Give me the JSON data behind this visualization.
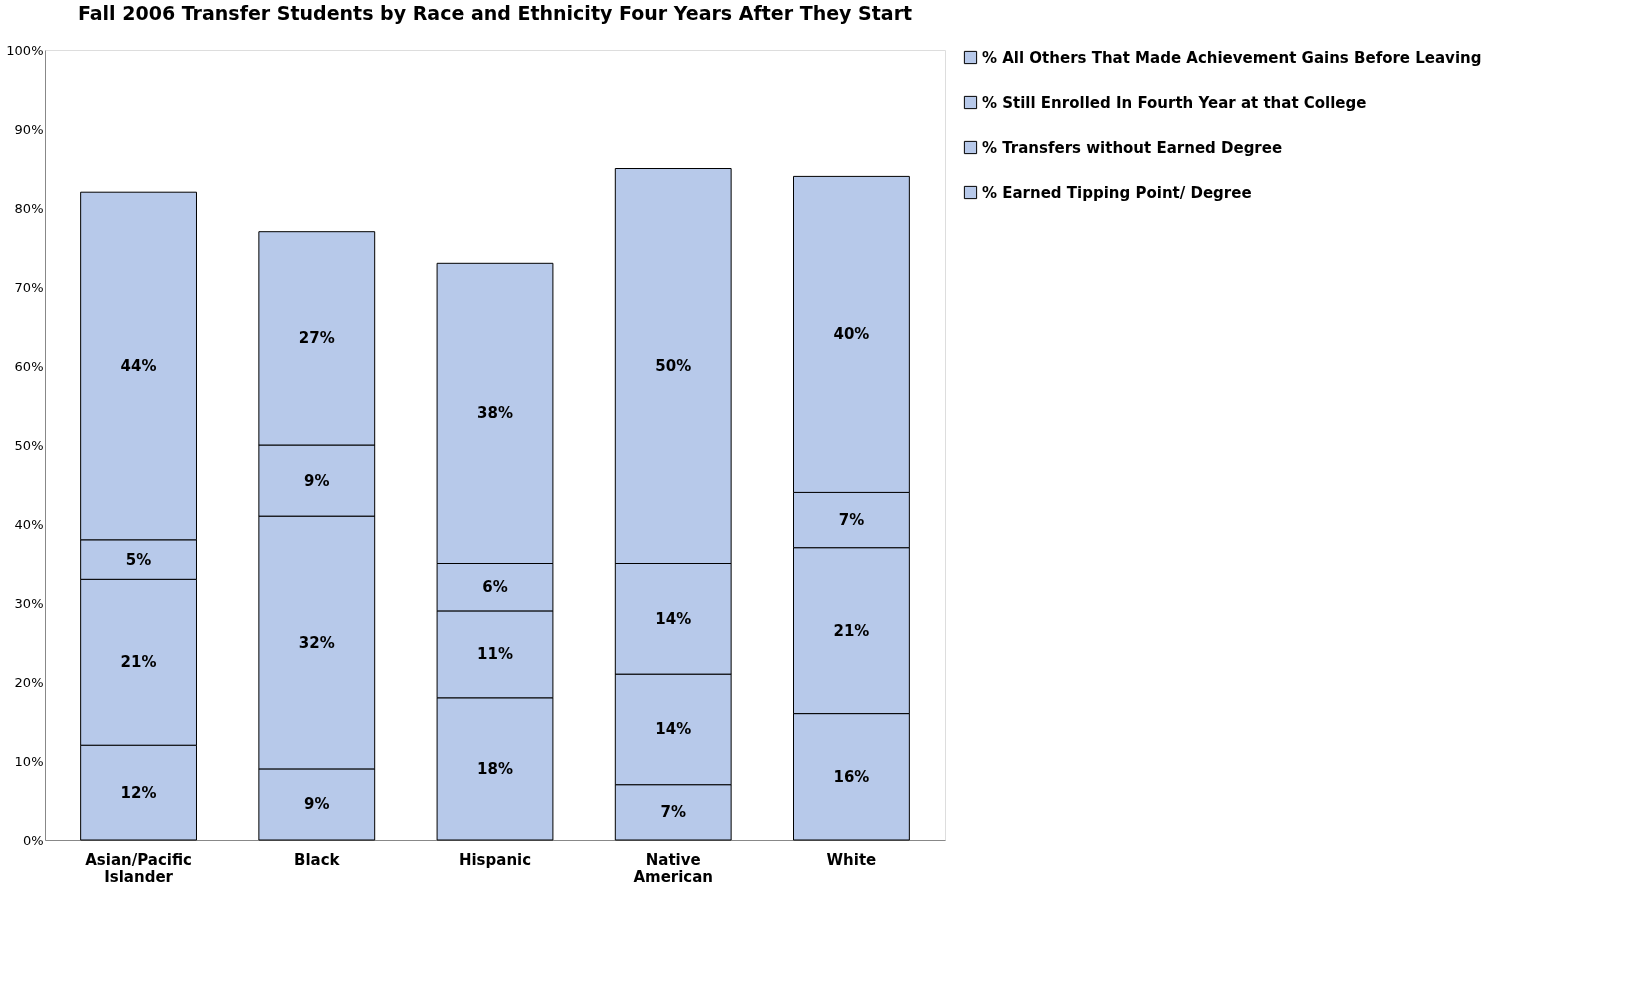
{
  "chart_data": {
    "type": "bar",
    "title": "Fall 2006 Transfer Students by Race and Ethnicity Four Years After They Start",
    "categories": [
      "Asian/Pacific Islander",
      "Black",
      "Hispanic",
      "Native American",
      "White"
    ],
    "stacked": true,
    "series": [
      {
        "name": "% Earned Tipping Point/ Degree",
        "color": "#b7c9ea",
        "values": [
          12,
          9,
          18,
          7,
          16
        ],
        "value_labels": [
          "12%",
          "9%",
          "18%",
          "7%",
          "16%"
        ]
      },
      {
        "name": "% Transfers without Earned Degree",
        "color": "#b7c9ea",
        "values": [
          21,
          32,
          11,
          14,
          21
        ],
        "value_labels": [
          "21%",
          "32%",
          "11%",
          "14%",
          "21%"
        ]
      },
      {
        "name": "% Still Enrolled In Fourth Year at that College",
        "color": "#b7c9ea",
        "values": [
          5,
          9,
          6,
          14,
          7
        ],
        "value_labels": [
          "5%",
          "9%",
          "6%",
          "14%",
          "7%"
        ]
      },
      {
        "name": "% All Others That Made Achievement Gains Before Leaving",
        "color": "#b7c9ea",
        "values": [
          44,
          27,
          38,
          50,
          40
        ],
        "value_labels": [
          "44%",
          "27%",
          "38%",
          "50%",
          "40%"
        ]
      }
    ],
    "ylim": [
      0,
      100
    ],
    "yticks": [
      {
        "value": 0,
        "label": "0%"
      },
      {
        "value": 10,
        "label": "10%"
      },
      {
        "value": 20,
        "label": "20%"
      },
      {
        "value": 30,
        "label": "30%"
      },
      {
        "value": 40,
        "label": "40%"
      },
      {
        "value": 50,
        "label": "50%"
      },
      {
        "value": 60,
        "label": "60%"
      },
      {
        "value": 70,
        "label": "70%"
      },
      {
        "value": 80,
        "label": "80%"
      },
      {
        "value": 90,
        "label": "90%"
      },
      {
        "value": 100,
        "label": "100%"
      }
    ],
    "grid": false,
    "legend": "right"
  }
}
